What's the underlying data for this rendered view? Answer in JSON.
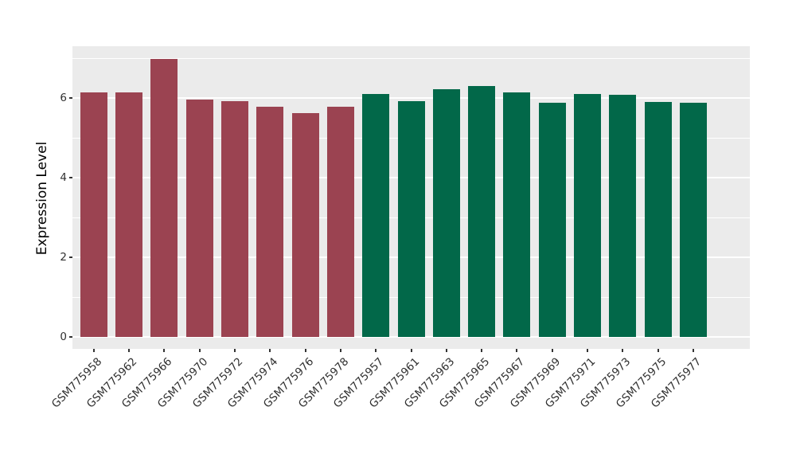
{
  "figure": {
    "background": "#FFFFFF"
  },
  "chart_data": {
    "type": "bar",
    "title": "",
    "xlabel": "",
    "ylabel": "Expression Level",
    "ylim": [
      -0.3,
      7.3
    ],
    "yticks": [
      0,
      2,
      4,
      6
    ],
    "ytick_labels": [
      "0",
      "2",
      "4",
      "6"
    ],
    "minor_gridlines": [
      1,
      3,
      5,
      7
    ],
    "grid": true,
    "legend": "none",
    "panel_bg": "#EBEBEB",
    "grid_color": "#FFFFFF",
    "axis_text_color": "#303030",
    "group_colors": {
      "group1": "#9B4351",
      "group2": "#026849"
    },
    "groups": [
      "group1",
      "group1",
      "group1",
      "group1",
      "group1",
      "group1",
      "group1",
      "group1",
      "group2",
      "group2",
      "group2",
      "group2",
      "group2",
      "group2",
      "group2",
      "group2",
      "group2",
      "group2"
    ],
    "categories": [
      "GSM775958",
      "GSM775962",
      "GSM775966",
      "GSM775970",
      "GSM775972",
      "GSM775974",
      "GSM775976",
      "GSM775978",
      "GSM775957",
      "GSM775961",
      "GSM775963",
      "GSM775965",
      "GSM775967",
      "GSM775969",
      "GSM775971",
      "GSM775973",
      "GSM775975",
      "GSM775977"
    ],
    "values": [
      6.15,
      6.15,
      6.98,
      5.97,
      5.93,
      5.78,
      5.63,
      5.78,
      6.1,
      5.93,
      6.23,
      6.3,
      6.15,
      5.88,
      6.11,
      6.08,
      5.91,
      5.89
    ]
  }
}
